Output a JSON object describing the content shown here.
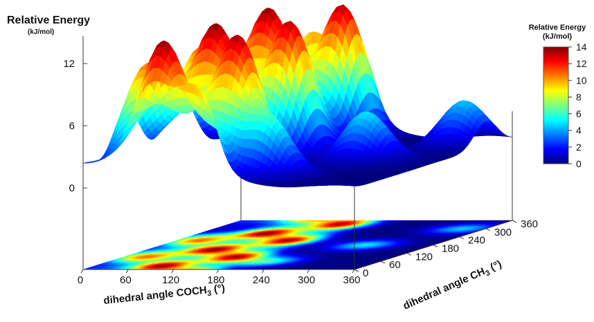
{
  "chart_data": {
    "type": "surface3d",
    "title": "Relative Energy",
    "title_units": "(kJ/mol)",
    "xlabel": "dihedral angle COCH",
    "xlabel_sub": "3",
    "xlabel_suffix": " (°)",
    "ylabel": "dihedral angle CH",
    "ylabel_sub": "3",
    "ylabel_suffix": " (°)",
    "x_ticks": [
      "0",
      "60",
      "120",
      "180",
      "240",
      "300",
      "360"
    ],
    "y_ticks": [
      "0",
      "60",
      "120",
      "180",
      "240",
      "300",
      "360"
    ],
    "z_ticks": [
      "0",
      "6",
      "12"
    ],
    "xlim": [
      0,
      360
    ],
    "ylim": [
      0,
      360
    ],
    "zlim": [
      0,
      14
    ],
    "colorbar": {
      "title": "Relative Energy",
      "units": "(kJ/mol)",
      "ticks": [
        "0",
        "2",
        "4",
        "6",
        "8",
        "10",
        "12",
        "14"
      ],
      "range": [
        0,
        14
      ],
      "colors": [
        "#00007f",
        "#0000ff",
        "#007fff",
        "#00ffff",
        "#7fff7f",
        "#ffff00",
        "#ff7f00",
        "#ff0000",
        "#7f0000"
      ]
    },
    "surface_model": {
      "description_source": "values estimated from figure",
      "x_range": [
        0,
        360
      ],
      "y_range": [
        0,
        360
      ],
      "high_region_x": [
        0,
        180
      ],
      "low_region_x": [
        180,
        360
      ],
      "peaks": [
        {
          "x": 90,
          "y": 30,
          "z": 13.5
        },
        {
          "x": 90,
          "y": 150,
          "z": 13.5
        },
        {
          "x": 90,
          "y": 270,
          "z": 13.5
        },
        {
          "x": 150,
          "y": 90,
          "z": 13.0
        },
        {
          "x": 150,
          "y": 210,
          "z": 13.0
        },
        {
          "x": 150,
          "y": 330,
          "z": 13.0
        },
        {
          "x": 30,
          "y": 90,
          "z": 10.5
        },
        {
          "x": 30,
          "y": 210,
          "z": 10.5
        },
        {
          "x": 210,
          "y": 60,
          "z": 6.0
        },
        {
          "x": 270,
          "y": 180,
          "z": 5.0
        },
        {
          "x": 330,
          "y": 300,
          "z": 4.5
        }
      ],
      "min_energy": 0
    }
  }
}
